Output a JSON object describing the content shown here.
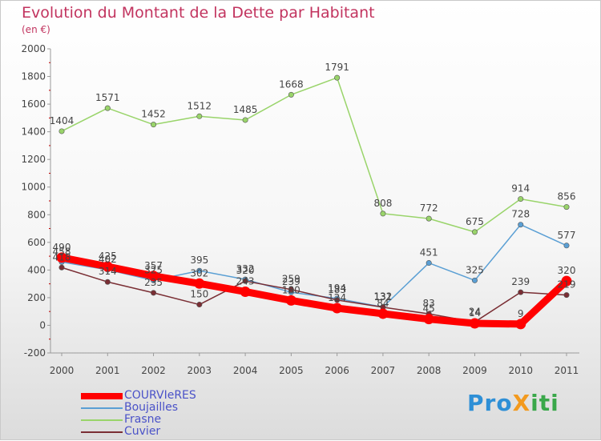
{
  "title": "Evolution du Montant de la Dette par Habitant",
  "subtitle": "(en €)",
  "brand": "ProXiti",
  "chart_data": {
    "type": "line",
    "x": [
      "2000",
      "2001",
      "2002",
      "2003",
      "2004",
      "2005",
      "2006",
      "2007",
      "2008",
      "2009",
      "2010",
      "2011"
    ],
    "ylim": [
      -200,
      2000
    ],
    "yticks": [
      -200,
      0,
      200,
      400,
      600,
      800,
      1000,
      1200,
      1400,
      1600,
      1800,
      2000
    ],
    "grid": false,
    "legend_position": "bottom-left",
    "series": [
      {
        "name": "COURVIeRES",
        "color": "#ff0000",
        "width": 9,
        "values": [
          490,
          425,
          357,
          302,
          243,
          180,
          124,
          84,
          45,
          14,
          9,
          320
        ]
      },
      {
        "name": "Boujailles",
        "color": "#5a9fd4",
        "width": 1.5,
        "values": [
          458,
          402,
          325,
          395,
          332,
          239,
          194,
          132,
          451,
          325,
          728,
          577
        ]
      },
      {
        "name": "Frasne",
        "color": "#99d46a",
        "width": 1.5,
        "values": [
          1404,
          1571,
          1452,
          1512,
          1485,
          1668,
          1791,
          808,
          772,
          675,
          914,
          856
        ]
      },
      {
        "name": "Cuvier",
        "color": "#7a2e34",
        "width": 1.5,
        "values": [
          418,
          314,
          235,
          150,
          320,
          259,
          183,
          131,
          83,
          24,
          239,
          219
        ]
      }
    ]
  }
}
